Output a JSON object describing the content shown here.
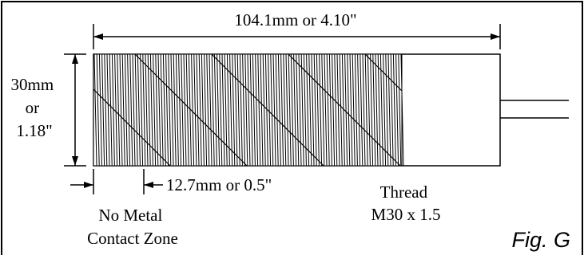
{
  "diagram": {
    "overall_length_label": "104.1mm or 4.10\"",
    "diameter_label": [
      "30mm",
      "or",
      "1.18\""
    ],
    "no_metal_length_label": "12.7mm or 0.5\"",
    "thread_label": [
      "Thread",
      "M30 x 1.5"
    ],
    "no_metal_zone_label": [
      "No Metal",
      "Contact Zone"
    ],
    "figure_label": "Fig. G"
  }
}
